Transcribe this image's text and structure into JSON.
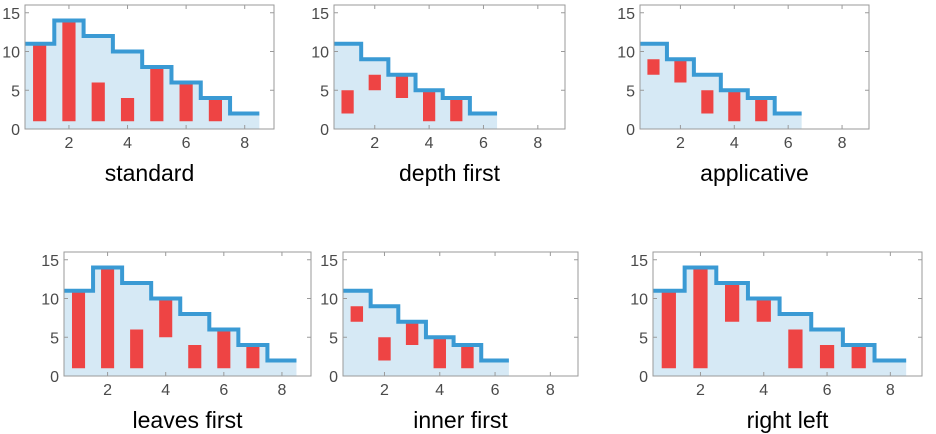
{
  "style": {
    "step_line": "#3a9ad4",
    "step_fill": "#d6e9f5",
    "bar": "#ee4444",
    "frame": "#9a9a9a",
    "tick_text": "#4a4a4a"
  },
  "chart_data": [
    {
      "type": "bar",
      "title": "standard",
      "xlim": [
        0.5,
        9
      ],
      "ylim": [
        0,
        16
      ],
      "xticks": [
        2,
        4,
        6,
        8
      ],
      "yticks": [
        0,
        5,
        10,
        15
      ],
      "step": [
        [
          0.5,
          11
        ],
        [
          1.5,
          14
        ],
        [
          2.5,
          12
        ],
        [
          3.5,
          10
        ],
        [
          4.5,
          8
        ],
        [
          5.5,
          6
        ],
        [
          6.5,
          4
        ],
        [
          7.5,
          2
        ],
        [
          8.5,
          2
        ]
      ],
      "bars": [
        [
          1,
          1,
          11
        ],
        [
          2,
          1,
          14
        ],
        [
          3,
          1,
          6
        ],
        [
          4,
          1,
          4
        ],
        [
          5,
          1,
          8
        ],
        [
          6,
          1,
          6
        ],
        [
          7,
          1,
          4
        ]
      ]
    },
    {
      "type": "bar",
      "title": "depth first",
      "xlim": [
        0.5,
        9
      ],
      "ylim": [
        0,
        16
      ],
      "xticks": [
        2,
        4,
        6,
        8
      ],
      "yticks": [
        0,
        5,
        10,
        15
      ],
      "step": [
        [
          0.5,
          11
        ],
        [
          1.5,
          9
        ],
        [
          2.5,
          7
        ],
        [
          3.5,
          5
        ],
        [
          4.5,
          4
        ],
        [
          5.5,
          2
        ],
        [
          6.5,
          2
        ]
      ],
      "bars": [
        [
          1,
          2,
          5
        ],
        [
          2,
          5,
          7
        ],
        [
          3,
          4,
          7
        ],
        [
          4,
          1,
          5
        ],
        [
          5,
          1,
          4
        ]
      ]
    },
    {
      "type": "bar",
      "title": "applicative",
      "xlim": [
        0.5,
        9
      ],
      "ylim": [
        0,
        16
      ],
      "xticks": [
        2,
        4,
        6,
        8
      ],
      "yticks": [
        0,
        5,
        10,
        15
      ],
      "step": [
        [
          0.5,
          11
        ],
        [
          1.5,
          9
        ],
        [
          2.5,
          7
        ],
        [
          3.5,
          5
        ],
        [
          4.5,
          4
        ],
        [
          5.5,
          2
        ],
        [
          6.5,
          2
        ]
      ],
      "bars": [
        [
          1,
          7,
          9
        ],
        [
          2,
          6,
          9
        ],
        [
          3,
          2,
          5
        ],
        [
          4,
          1,
          5
        ],
        [
          5,
          1,
          4
        ]
      ]
    },
    {
      "type": "bar",
      "title": "leaves first",
      "xlim": [
        0.5,
        9
      ],
      "ylim": [
        0,
        16
      ],
      "xticks": [
        2,
        4,
        6,
        8
      ],
      "yticks": [
        0,
        5,
        10,
        15
      ],
      "step": [
        [
          0.5,
          11
        ],
        [
          1.5,
          14
        ],
        [
          2.5,
          12
        ],
        [
          3.5,
          10
        ],
        [
          4.5,
          8
        ],
        [
          5.5,
          6
        ],
        [
          6.5,
          4
        ],
        [
          7.5,
          2
        ],
        [
          8.5,
          2
        ]
      ],
      "bars": [
        [
          1,
          1,
          11
        ],
        [
          2,
          1,
          14
        ],
        [
          3,
          1,
          6
        ],
        [
          4,
          5,
          10
        ],
        [
          5,
          1,
          4
        ],
        [
          6,
          1,
          6
        ],
        [
          7,
          1,
          4
        ]
      ]
    },
    {
      "type": "bar",
      "title": "inner first",
      "xlim": [
        0.5,
        9
      ],
      "ylim": [
        0,
        16
      ],
      "xticks": [
        2,
        4,
        6,
        8
      ],
      "yticks": [
        0,
        5,
        10,
        15
      ],
      "step": [
        [
          0.5,
          11
        ],
        [
          1.5,
          9
        ],
        [
          2.5,
          7
        ],
        [
          3.5,
          5
        ],
        [
          4.5,
          4
        ],
        [
          5.5,
          2
        ],
        [
          6.5,
          2
        ]
      ],
      "bars": [
        [
          1,
          7,
          9
        ],
        [
          2,
          2,
          5
        ],
        [
          3,
          4,
          7
        ],
        [
          4,
          1,
          5
        ],
        [
          5,
          1,
          4
        ]
      ]
    },
    {
      "type": "bar",
      "title": "right left",
      "xlim": [
        0.5,
        9
      ],
      "ylim": [
        0,
        16
      ],
      "xticks": [
        2,
        4,
        6,
        8
      ],
      "yticks": [
        0,
        5,
        10,
        15
      ],
      "step": [
        [
          0.5,
          11
        ],
        [
          1.5,
          14
        ],
        [
          2.5,
          12
        ],
        [
          3.5,
          10
        ],
        [
          4.5,
          8
        ],
        [
          5.5,
          6
        ],
        [
          6.5,
          4
        ],
        [
          7.5,
          2
        ],
        [
          8.5,
          2
        ]
      ],
      "bars": [
        [
          1,
          1,
          11
        ],
        [
          2,
          1,
          14
        ],
        [
          3,
          7,
          12
        ],
        [
          4,
          7,
          10
        ],
        [
          5,
          1,
          6
        ],
        [
          6,
          1,
          4
        ],
        [
          7,
          1,
          4
        ]
      ]
    }
  ]
}
